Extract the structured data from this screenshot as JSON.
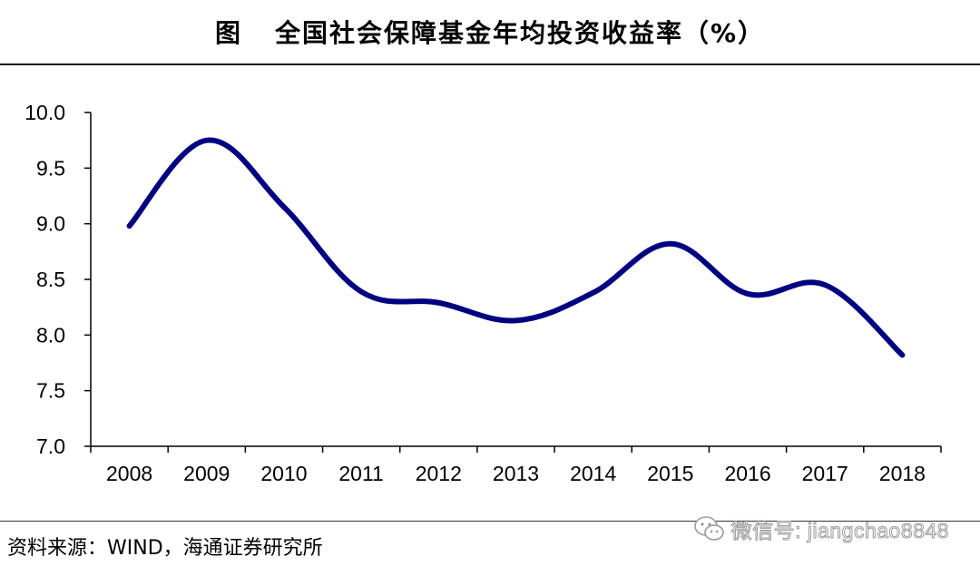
{
  "header": {
    "label": "图",
    "title": "全国社会保障基金年均投资收益率（%）"
  },
  "chart_data": {
    "type": "line",
    "categories": [
      "2008",
      "2009",
      "2010",
      "2011",
      "2012",
      "2013",
      "2014",
      "2015",
      "2016",
      "2017",
      "2018"
    ],
    "series": [
      {
        "values": [
          8.98,
          9.75,
          9.15,
          8.39,
          8.29,
          8.13,
          8.38,
          8.82,
          8.37,
          8.45,
          7.82
        ]
      }
    ],
    "title": "全国社会保障基金年均投资收益率（%）",
    "xlabel": "",
    "ylabel": "",
    "ylim": [
      7.0,
      10.0
    ],
    "yticks": [
      "7.0",
      "7.5",
      "8.0",
      "8.5",
      "9.0",
      "9.5",
      "10.0"
    ],
    "grid": false,
    "legend": "none",
    "line_color": "#000080",
    "smooth": true
  },
  "footer": {
    "source": "资料来源：WIND，海通证券研究所",
    "watermark": "微信号: jiangchao8848",
    "watermark_icon": "wechat-icon"
  }
}
